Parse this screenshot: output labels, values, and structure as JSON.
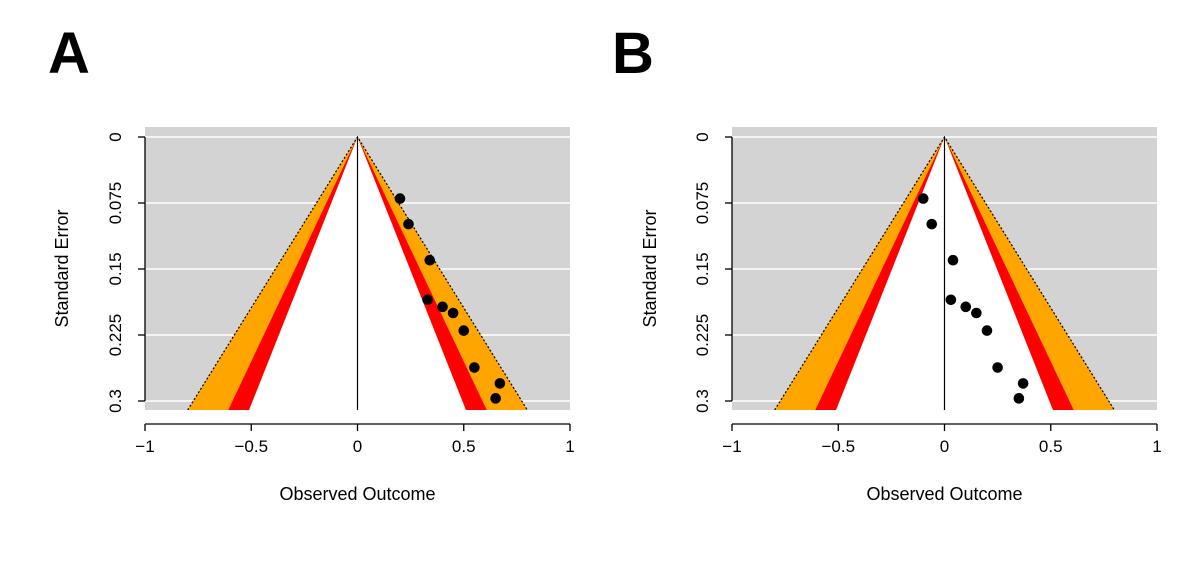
{
  "panels": [
    {
      "letter": "A"
    },
    {
      "letter": "B"
    }
  ],
  "chart_data": [
    {
      "type": "scatter",
      "subtype": "contour-enhanced funnel plot",
      "xlabel": "Observed Outcome",
      "ylabel": "Standard Error",
      "xlim": [
        -1,
        1
      ],
      "ylim": [
        0.3,
        0
      ],
      "y_reversed": true,
      "x_ticks": [
        -1,
        -0.5,
        0,
        0.5,
        1
      ],
      "x_tick_labels": [
        "−1",
        "−0.5",
        "0",
        "0.5",
        "1"
      ],
      "y_ticks": [
        0,
        0.075,
        0.15,
        0.225,
        0.3
      ],
      "y_tick_labels": [
        "0",
        "0.075",
        "0.15",
        "0.225",
        "0.3"
      ],
      "grid": true,
      "reference_line_x": 0,
      "contour_z": [
        1.645,
        1.96,
        2.576
      ],
      "contour_colors": {
        "background": "#d3d3d3",
        "inner": "#ffffff",
        "red": "#ff0000",
        "orange": "#ffa500"
      },
      "points": [
        {
          "x": 0.2,
          "y": 0.07
        },
        {
          "x": 0.24,
          "y": 0.099
        },
        {
          "x": 0.34,
          "y": 0.14
        },
        {
          "x": 0.33,
          "y": 0.185
        },
        {
          "x": 0.4,
          "y": 0.193
        },
        {
          "x": 0.45,
          "y": 0.2
        },
        {
          "x": 0.5,
          "y": 0.22
        },
        {
          "x": 0.55,
          "y": 0.262
        },
        {
          "x": 0.67,
          "y": 0.28
        },
        {
          "x": 0.65,
          "y": 0.297
        }
      ]
    },
    {
      "type": "scatter",
      "subtype": "contour-enhanced funnel plot",
      "xlabel": "Observed Outcome",
      "ylabel": "Standard Error",
      "xlim": [
        -1,
        1
      ],
      "ylim": [
        0.3,
        0
      ],
      "y_reversed": true,
      "x_ticks": [
        -1,
        -0.5,
        0,
        0.5,
        1
      ],
      "x_tick_labels": [
        "−1",
        "−0.5",
        "0",
        "0.5",
        "1"
      ],
      "y_ticks": [
        0,
        0.075,
        0.15,
        0.225,
        0.3
      ],
      "y_tick_labels": [
        "0",
        "0.075",
        "0.15",
        "0.225",
        "0.3"
      ],
      "grid": true,
      "reference_line_x": 0,
      "contour_z": [
        1.645,
        1.96,
        2.576
      ],
      "contour_colors": {
        "background": "#d3d3d3",
        "inner": "#ffffff",
        "red": "#ff0000",
        "orange": "#ffa500"
      },
      "points": [
        {
          "x": -0.1,
          "y": 0.07
        },
        {
          "x": -0.06,
          "y": 0.099
        },
        {
          "x": 0.04,
          "y": 0.14
        },
        {
          "x": 0.03,
          "y": 0.185
        },
        {
          "x": 0.1,
          "y": 0.193
        },
        {
          "x": 0.15,
          "y": 0.2
        },
        {
          "x": 0.2,
          "y": 0.22
        },
        {
          "x": 0.25,
          "y": 0.262
        },
        {
          "x": 0.37,
          "y": 0.28
        },
        {
          "x": 0.35,
          "y": 0.297
        }
      ]
    }
  ]
}
